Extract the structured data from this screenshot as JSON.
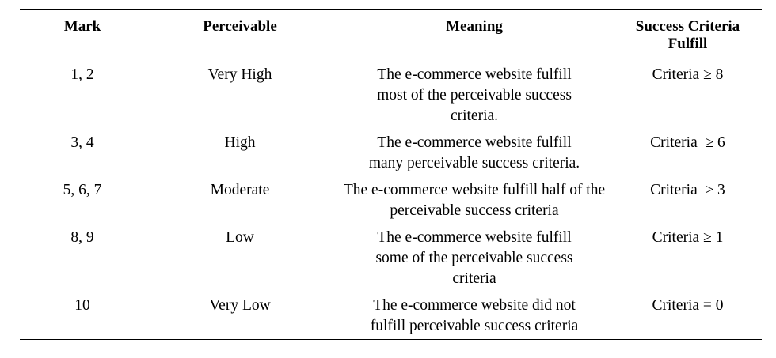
{
  "table": {
    "headers": {
      "mark": "Mark",
      "perceivable": "Perceivable",
      "meaning": "Meaning",
      "success": "Success Criteria Fulfill"
    },
    "rows": [
      {
        "mark": "1, 2",
        "perceivable": "Very High",
        "meaning": "The e-commerce website fulfill most of the perceivable success criteria.",
        "success": "Criteria ≥ 8"
      },
      {
        "mark": "3, 4",
        "perceivable": "High",
        "meaning": "The e-commerce website fulfill many perceivable success criteria.",
        "success": "Criteria  ≥ 6"
      },
      {
        "mark": "5, 6, 7",
        "perceivable": "Moderate",
        "meaning": "The e-commerce website fulfill half of the perceivable success criteria",
        "success": "Criteria  ≥ 3"
      },
      {
        "mark": "8, 9",
        "perceivable": "Low",
        "meaning": "The e-commerce website fulfill some of the perceivable success criteria",
        "success": "Criteria ≥ 1"
      },
      {
        "mark": "10",
        "perceivable": "Very Low",
        "meaning": "The e-commerce website did not fulfill perceivable success criteria",
        "success": "Criteria = 0"
      }
    ]
  }
}
